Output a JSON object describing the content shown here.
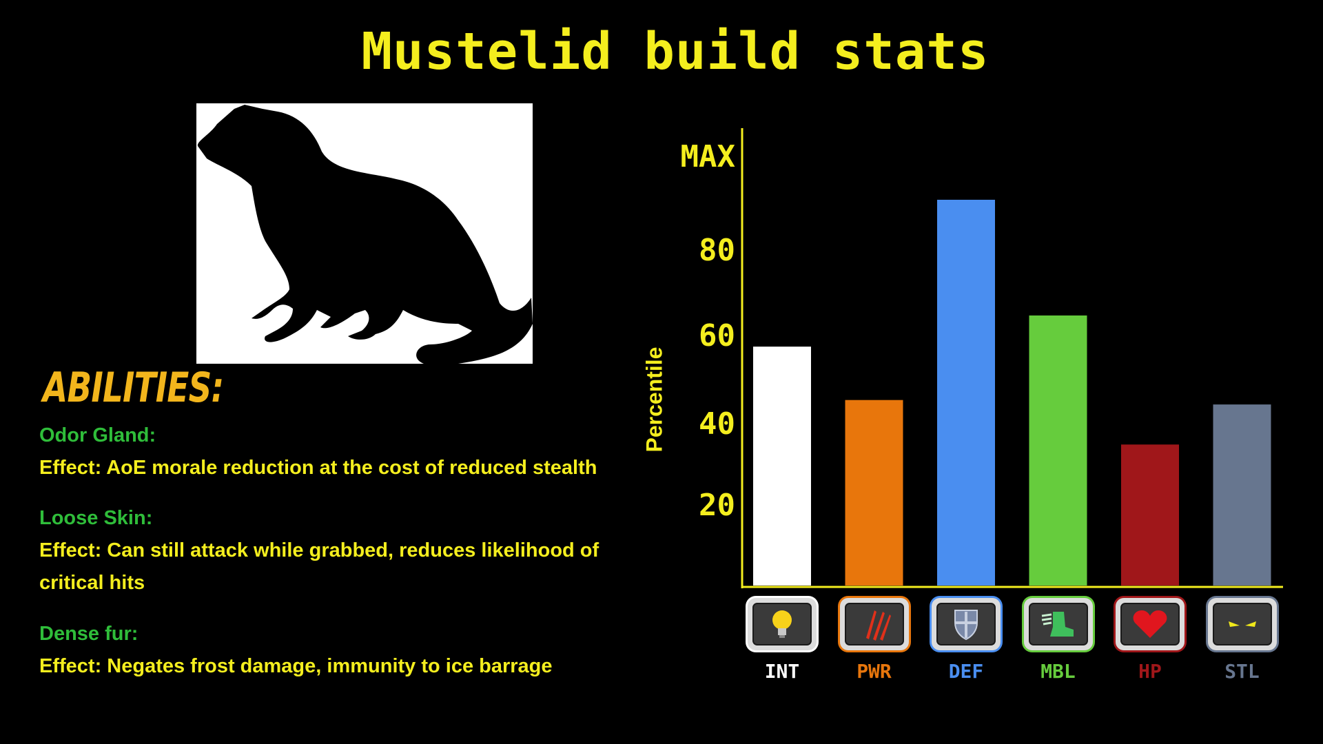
{
  "title": "Mustelid build stats",
  "abilities_heading": "ABILITIES:",
  "abilities": [
    {
      "name": "Odor Gland:",
      "effect": "Effect: AoE morale reduction at the cost of reduced stealth"
    },
    {
      "name": "Loose Skin:",
      "effect": "Effect: Can still attack while grabbed, reduces likelihood of critical hits"
    },
    {
      "name": "Dense fur:",
      "effect": "Effect: Negates frost damage, immunity to ice barrage"
    }
  ],
  "colors": {
    "title": "#f4ee1e",
    "heading": "#f2b51c",
    "ability_name": "#2fbd3a",
    "effect_text": "#f4ee1e",
    "axis": "#f4ee1e",
    "background": "#000000"
  },
  "chart_data": {
    "type": "bar",
    "title": "",
    "xlabel": "",
    "ylabel": "Percentile",
    "ylim": [
      0,
      100
    ],
    "yticks": [
      {
        "value": 20,
        "label": "20"
      },
      {
        "value": 40,
        "label": "40"
      },
      {
        "value": 60,
        "label": "60"
      },
      {
        "value": 80,
        "label": "80"
      },
      {
        "value": 100,
        "label": "MAX"
      }
    ],
    "categories": [
      "INT",
      "PWR",
      "DEF",
      "MBL",
      "HP",
      "STL"
    ],
    "values": [
      54,
      42,
      87,
      61,
      32,
      41
    ],
    "bar_colors": [
      "#ffffff",
      "#e8760c",
      "#4a8ef0",
      "#66cc3d",
      "#a0171a",
      "#67768f"
    ],
    "label_colors": [
      "#ffffff",
      "#e8760c",
      "#4a8ef0",
      "#66cc3d",
      "#a0171a",
      "#67768f"
    ],
    "icons": [
      "lightbulb-icon",
      "claw-marks-icon",
      "shield-icon",
      "winged-boot-icon",
      "heart-icon",
      "eyes-icon"
    ],
    "grid": false,
    "legend": "none"
  }
}
